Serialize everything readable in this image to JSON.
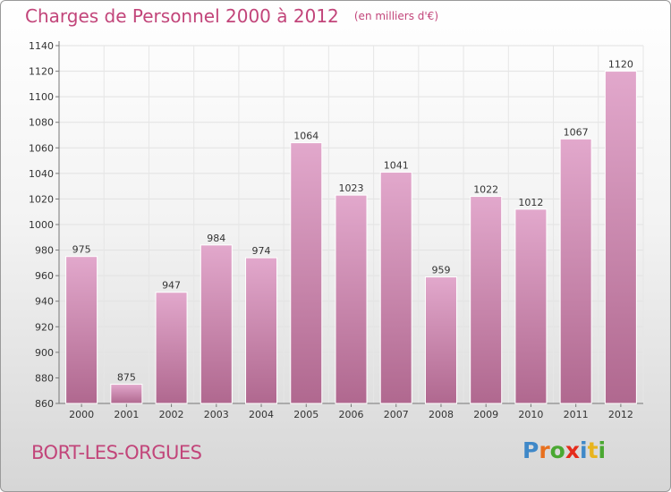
{
  "chart_data": {
    "type": "bar",
    "title": "Charges de Personnel 2000 à 2012",
    "subtitle": "(en milliers d'€)",
    "categories": [
      "2000",
      "2001",
      "2002",
      "2003",
      "2004",
      "2005",
      "2006",
      "2007",
      "2008",
      "2009",
      "2010",
      "2011",
      "2012"
    ],
    "values": [
      975,
      875,
      947,
      984,
      974,
      1064,
      1023,
      1041,
      959,
      1022,
      1012,
      1067,
      1120
    ],
    "data_labels": [
      "975",
      "875",
      "947",
      "984",
      "974",
      "1064",
      "1023",
      "1041",
      "959",
      "1022",
      "1012",
      "1067",
      "1120"
    ],
    "ylim": [
      860,
      1140
    ],
    "yticks": [
      860,
      880,
      900,
      920,
      940,
      960,
      980,
      1000,
      1020,
      1040,
      1060,
      1080,
      1100,
      1120,
      1140
    ],
    "grid": true,
    "legend": "none",
    "bar_color_top": "#e2a8cc",
    "bar_color_bottom": "#b0688f",
    "xlabel": "",
    "ylabel": ""
  },
  "footer": {
    "town": "BORT-LES-ORGUES"
  },
  "logo": {
    "letters": [
      {
        "ch": "P",
        "color": "#3f88c8"
      },
      {
        "ch": "r",
        "color": "#e8701e"
      },
      {
        "ch": "o",
        "color": "#4aa832"
      },
      {
        "ch": "x",
        "color": "#e52c1c"
      },
      {
        "ch": "i",
        "color": "#3f88c8"
      },
      {
        "ch": "t",
        "color": "#e8b41e"
      },
      {
        "ch": "i",
        "color": "#4aa832"
      }
    ]
  },
  "title_color": "#c2457a"
}
